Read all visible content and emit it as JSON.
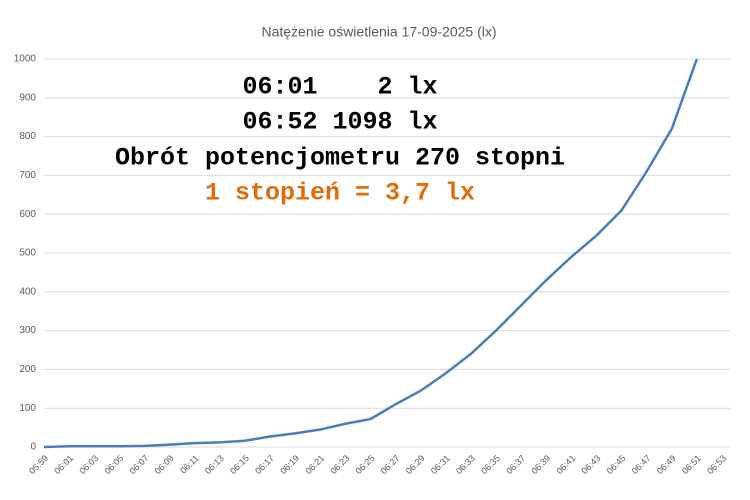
{
  "chart_data": {
    "type": "line",
    "title": "Natężenie oświetlenia 17-09-2025 (lx)",
    "categories": [
      "05:59",
      "06:01",
      "06:03",
      "06:05",
      "06:07",
      "06:09",
      "06:11",
      "06:13",
      "06:15",
      "06:17",
      "06:19",
      "06:21",
      "06:23",
      "06:25",
      "06:27",
      "06:29",
      "06:31",
      "06:33",
      "06:35",
      "06:37",
      "06:39",
      "06:41",
      "06:43",
      "06:45",
      "06:47",
      "06:49",
      "06:51",
      "06:53"
    ],
    "series": [
      {
        "name": "Natężenie",
        "color": "#4a7ebb",
        "values": [
          0,
          2,
          2,
          2,
          3,
          6,
          10,
          12,
          16,
          27,
          35,
          45,
          60,
          72,
          110,
          145,
          190,
          240,
          300,
          365,
          430,
          490,
          545,
          610,
          710,
          820,
          1000,
          null
        ]
      }
    ],
    "ylim": [
      0,
      1000
    ],
    "yticks": [
      0,
      100,
      200,
      300,
      400,
      500,
      600,
      700,
      800,
      900,
      1000
    ],
    "grid": true,
    "annotations": [
      {
        "text": "06:01    2 lx",
        "color": "#000000"
      },
      {
        "text": "06:52 1098 lx",
        "color": "#000000"
      },
      {
        "text": "Obrót potencjometru 270 stopni",
        "color": "#000000"
      },
      {
        "text": "1 stopień = 3,7 lx",
        "color": "#e36c0a"
      }
    ]
  }
}
